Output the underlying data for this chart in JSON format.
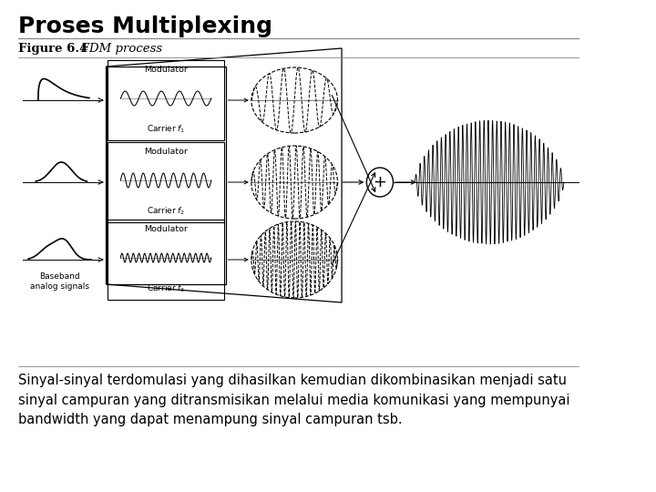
{
  "title": "Proses Multiplexing",
  "figure_label": "Figure 6.4",
  "figure_caption_italic": "   FDM process",
  "description": "Sinyal-sinyal terdomulasi yang dihasilkan kemudian dikombinasikan menjadi satu\nsinyal campuran yang ditransmisikan melalui media komunikasi yang mempunyai\nbandwidth yang dapat menampung sinyal campuran tsb.",
  "bg_color": "#ffffff",
  "text_color": "#000000",
  "title_fontsize": 18,
  "body_fontsize": 10.5,
  "fig_label_fontsize": 9.5
}
